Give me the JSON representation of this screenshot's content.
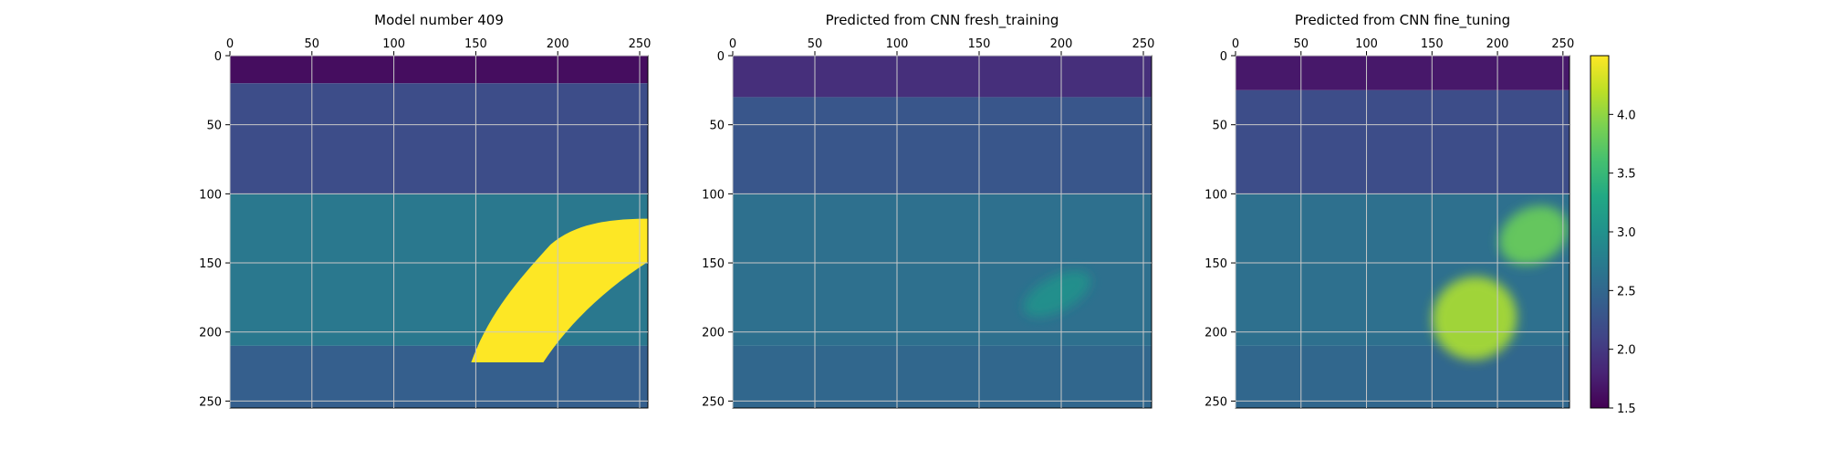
{
  "chart_data": [
    {
      "type": "heatmap",
      "title": "Model number 409",
      "x_ticks": [
        0,
        50,
        100,
        150,
        200,
        250
      ],
      "y_ticks": [
        0,
        50,
        100,
        150,
        200,
        250
      ],
      "xlim": [
        0,
        255
      ],
      "ylim": [
        255,
        0
      ],
      "grid": true,
      "x_axis_position": "top",
      "layers": [
        {
          "depth_range": [
            0,
            20
          ],
          "value": 1.6
        },
        {
          "depth_range": [
            20,
            100
          ],
          "value": 2.2
        },
        {
          "depth_range": [
            100,
            210
          ],
          "value": 2.7
        },
        {
          "depth_range": [
            210,
            255
          ],
          "value": 2.4
        }
      ],
      "anomalies": [
        {
          "shape": "salt-body",
          "x_range": [
            145,
            255
          ],
          "y_range": [
            118,
            222
          ],
          "value": 4.5
        }
      ]
    },
    {
      "type": "heatmap",
      "title": "Predicted from CNN fresh_training",
      "x_ticks": [
        0,
        50,
        100,
        150,
        200,
        250
      ],
      "y_ticks": [
        0,
        50,
        100,
        150,
        200,
        250
      ],
      "xlim": [
        0,
        255
      ],
      "ylim": [
        255,
        0
      ],
      "grid": true,
      "x_axis_position": "top",
      "layers": [
        {
          "depth_range": [
            0,
            30
          ],
          "value": 1.9
        },
        {
          "depth_range": [
            30,
            100
          ],
          "value": 2.3
        },
        {
          "depth_range": [
            100,
            210
          ],
          "value": 2.6
        },
        {
          "depth_range": [
            210,
            255
          ],
          "value": 2.5
        }
      ],
      "anomalies": [
        {
          "shape": "blob",
          "x_range": [
            175,
            220
          ],
          "y_range": [
            160,
            185
          ],
          "value": 3.0
        }
      ]
    },
    {
      "type": "heatmap",
      "title": "Predicted from CNN fine_tuning",
      "x_ticks": [
        0,
        50,
        100,
        150,
        200,
        250
      ],
      "y_ticks": [
        0,
        50,
        100,
        150,
        200,
        250
      ],
      "xlim": [
        0,
        255
      ],
      "ylim": [
        255,
        0
      ],
      "grid": true,
      "x_axis_position": "top",
      "layers": [
        {
          "depth_range": [
            0,
            25
          ],
          "value": 1.7
        },
        {
          "depth_range": [
            25,
            100
          ],
          "value": 2.2
        },
        {
          "depth_range": [
            100,
            210
          ],
          "value": 2.6
        },
        {
          "depth_range": [
            210,
            255
          ],
          "value": 2.5
        }
      ],
      "anomalies": [
        {
          "shape": "blob",
          "x_range": [
            150,
            215
          ],
          "y_range": [
            160,
            220
          ],
          "value": 4.1
        },
        {
          "shape": "blob",
          "x_range": [
            200,
            255
          ],
          "y_range": [
            110,
            150
          ],
          "value": 3.8
        }
      ]
    }
  ],
  "colorbar": {
    "colormap": "viridis",
    "range": [
      1.5,
      4.5
    ],
    "ticks": [
      "1.5",
      "2.0",
      "2.5",
      "3.0",
      "3.5",
      "4.0"
    ],
    "tick_values": [
      1.5,
      2.0,
      2.5,
      3.0,
      3.5,
      4.0
    ]
  }
}
